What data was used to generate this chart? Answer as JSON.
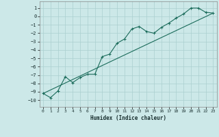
{
  "xlabel": "Humidex (Indice chaleur)",
  "bg_color": "#cce8e8",
  "grid_color": "#aacfcf",
  "line_color": "#1a6b5a",
  "xlim": [
    -0.5,
    23.5
  ],
  "ylim": [
    -10.8,
    1.8
  ],
  "xticks": [
    0,
    1,
    2,
    3,
    4,
    5,
    6,
    7,
    8,
    9,
    10,
    11,
    12,
    13,
    14,
    15,
    16,
    17,
    18,
    19,
    20,
    21,
    22,
    23
  ],
  "yticks": [
    1,
    0,
    -1,
    -2,
    -3,
    -4,
    -5,
    -6,
    -7,
    -8,
    -9,
    -10
  ],
  "line1_x": [
    0,
    1,
    2,
    3,
    4,
    5,
    6,
    7,
    8,
    9,
    10,
    11,
    12,
    13,
    14,
    15,
    16,
    17,
    18,
    19,
    20,
    21,
    22,
    23
  ],
  "line1_y": [
    -9.2,
    -9.7,
    -8.9,
    -7.2,
    -7.9,
    -7.3,
    -6.9,
    -6.9,
    -4.8,
    -4.5,
    -3.2,
    -2.7,
    -1.5,
    -1.2,
    -1.8,
    -2.0,
    -1.3,
    -0.8,
    -0.2,
    0.3,
    1.0,
    1.0,
    0.5,
    0.4
  ],
  "line2_x": [
    0,
    23
  ],
  "line2_y": [
    -9.2,
    0.4
  ]
}
